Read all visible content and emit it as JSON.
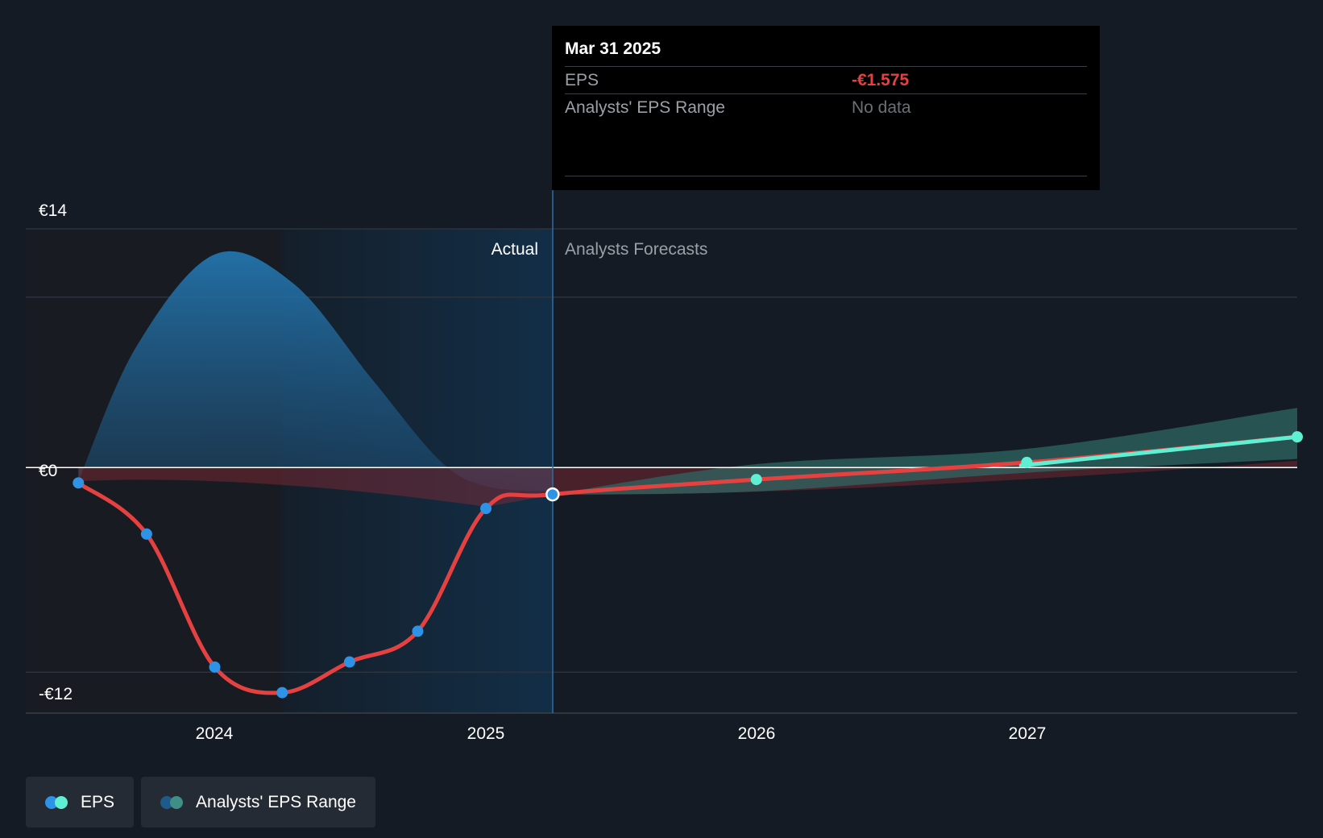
{
  "chart_data": {
    "type": "line",
    "title": "",
    "xlabel": "",
    "ylabel": "",
    "ylim": [
      -14.4,
      14
    ],
    "y_tick_labels": [
      {
        "value": 14,
        "label": "€14"
      },
      {
        "value": 0,
        "label": "€0"
      },
      {
        "value": -12,
        "label": "-€12"
      }
    ],
    "x_ticks": [
      "2024",
      "2025",
      "2026",
      "2027"
    ],
    "x_range": [
      "2023-04-20",
      "2027-12-31"
    ],
    "regions": {
      "actual_label": "Actual",
      "forecast_label": "Analysts Forecasts"
    },
    "series": [
      {
        "name": "EPS",
        "points": [
          {
            "x": "2023-06-30",
            "y": -0.9
          },
          {
            "x": "2023-09-30",
            "y": -3.9
          },
          {
            "x": "2023-12-31",
            "y": -11.7
          },
          {
            "x": "2024-03-31",
            "y": -13.2
          },
          {
            "x": "2024-06-30",
            "y": -11.4
          },
          {
            "x": "2024-09-30",
            "y": -9.6
          },
          {
            "x": "2024-12-31",
            "y": -2.4
          },
          {
            "x": "2025-03-31",
            "y": -1.575
          },
          {
            "x": "2025-12-31",
            "y": -0.7
          },
          {
            "x": "2026-12-31",
            "y": 0.3
          },
          {
            "x": "2027-12-31",
            "y": 1.8
          }
        ]
      },
      {
        "name": "Analysts' EPS Range",
        "points": [
          {
            "x": "2025-03-31",
            "low": -1.575,
            "high": -1.575
          },
          {
            "x": "2025-12-31",
            "low": -1.4,
            "high": 0.2
          },
          {
            "x": "2026-12-31",
            "low": -0.3,
            "high": 1.1
          },
          {
            "x": "2027-12-31",
            "low": 0.5,
            "high": 3.5
          }
        ]
      }
    ],
    "tooltip": {
      "date": "Mar 31 2025",
      "rows": [
        {
          "label": "EPS",
          "value": "-€1.575"
        },
        {
          "label": "Analysts' EPS Range",
          "value": "No data"
        }
      ]
    },
    "legend": [
      {
        "label": "EPS",
        "colors": [
          "#2e93e6",
          "#5ff0d4"
        ]
      },
      {
        "label": "Analysts' EPS Range",
        "colors": [
          "#1e5b8a",
          "#3f8f86"
        ]
      }
    ],
    "colors": {
      "eps_line": "#e64141",
      "eps_dot_actual": "#2e93e6",
      "eps_dot_forecast": "#5ff0d4",
      "forecast_positive_line": "#5ff0d4",
      "range_band": "#2f6b66",
      "neg_band": "#8a2b36",
      "area_fill": "#2479b5"
    }
  }
}
